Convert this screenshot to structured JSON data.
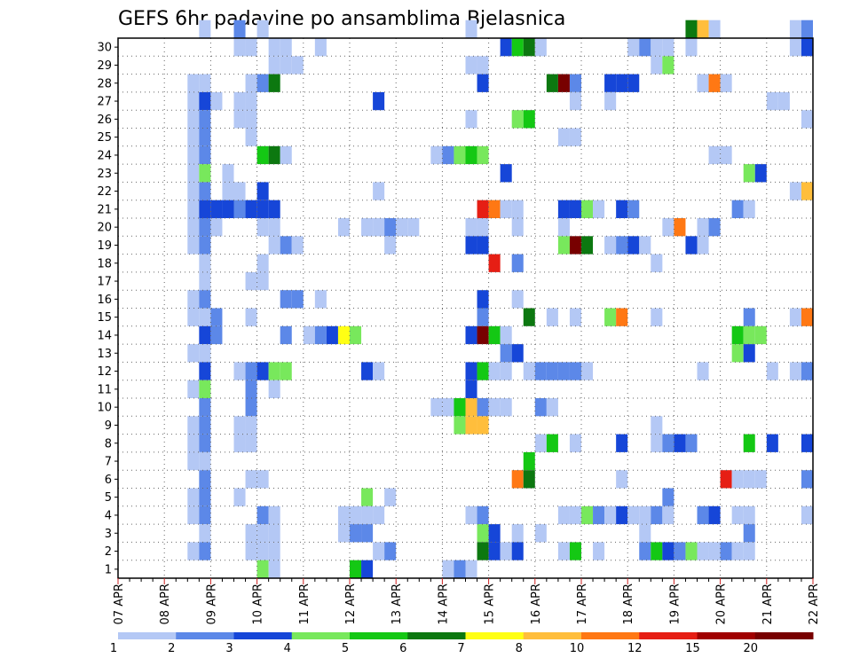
{
  "chart_data": {
    "type": "heatmap",
    "title": "GEFS 6hr padavine po ansamblima Bjelasnica",
    "x_tick_labels": [
      "07 APR",
      "08 APR",
      "09 APR",
      "10 APR",
      "11 APR",
      "12 APR",
      "13 APR",
      "14 APR",
      "15 APR",
      "16 APR",
      "17 APR",
      "18 APR",
      "19 APR",
      "20 APR",
      "21 APR",
      "22 APR"
    ],
    "y_tick_labels": [
      "1",
      "2",
      "3",
      "4",
      "5",
      "6",
      "7",
      "8",
      "9",
      "10",
      "11",
      "12",
      "13",
      "14",
      "15",
      "16",
      "17",
      "18",
      "19",
      "20",
      "21",
      "22",
      "23",
      "24",
      "25",
      "26",
      "27",
      "28",
      "29",
      "30"
    ],
    "xlim": [
      0,
      60
    ],
    "ylim": [
      0,
      30
    ],
    "grid": true,
    "color_levels": [
      1,
      2,
      3,
      4,
      5,
      6,
      7,
      8,
      10,
      12,
      15,
      20
    ],
    "colorbar_labels": [
      "1",
      "2",
      "3",
      "4",
      "5",
      "6",
      "7",
      "8",
      "10",
      "12",
      "15",
      "20"
    ],
    "colors": [
      "#b4c8f5",
      "#5c88e8",
      "#1646d8",
      "#78e85c",
      "#14c814",
      "#0c7810",
      "#ffff14",
      "#ffbe3c",
      "#ff7814",
      "#e61e14",
      "#a00000",
      "#780000"
    ],
    "cells": [
      [
        7,
        30,
        1
      ],
      [
        10,
        30,
        2
      ],
      [
        12,
        30,
        1
      ],
      [
        30,
        30,
        1
      ],
      [
        49,
        30,
        6
      ],
      [
        50,
        30,
        8
      ],
      [
        51,
        30,
        1
      ],
      [
        58,
        30,
        1
      ],
      [
        59,
        30,
        2
      ],
      [
        10,
        29,
        1
      ],
      [
        11,
        29,
        1
      ],
      [
        13,
        29,
        1
      ],
      [
        14,
        29,
        1
      ],
      [
        17,
        29,
        1
      ],
      [
        33,
        29,
        3
      ],
      [
        34,
        29,
        5
      ],
      [
        35,
        29,
        6
      ],
      [
        36,
        29,
        1
      ],
      [
        44,
        29,
        1
      ],
      [
        45,
        29,
        2
      ],
      [
        46,
        29,
        1
      ],
      [
        47,
        29,
        1
      ],
      [
        49,
        29,
        1
      ],
      [
        58,
        29,
        1
      ],
      [
        59,
        29,
        3
      ],
      [
        13,
        28,
        1
      ],
      [
        14,
        28,
        1
      ],
      [
        15,
        28,
        1
      ],
      [
        30,
        28,
        1
      ],
      [
        31,
        28,
        1
      ],
      [
        46,
        28,
        1
      ],
      [
        47,
        28,
        4
      ],
      [
        6,
        27,
        1
      ],
      [
        7,
        27,
        1
      ],
      [
        11,
        27,
        1
      ],
      [
        12,
        27,
        2
      ],
      [
        13,
        27,
        6
      ],
      [
        31,
        27,
        3
      ],
      [
        37,
        27,
        6
      ],
      [
        38,
        27,
        12
      ],
      [
        39,
        27,
        2
      ],
      [
        42,
        27,
        3
      ],
      [
        43,
        27,
        3
      ],
      [
        44,
        27,
        3
      ],
      [
        50,
        27,
        1
      ],
      [
        51,
        27,
        9
      ],
      [
        52,
        27,
        1
      ],
      [
        6,
        26,
        1
      ],
      [
        7,
        26,
        3
      ],
      [
        8,
        26,
        1
      ],
      [
        10,
        26,
        1
      ],
      [
        11,
        26,
        1
      ],
      [
        22,
        26,
        3
      ],
      [
        39,
        26,
        1
      ],
      [
        42,
        26,
        1
      ],
      [
        56,
        26,
        1
      ],
      [
        57,
        26,
        1
      ],
      [
        6,
        25,
        1
      ],
      [
        7,
        25,
        2
      ],
      [
        10,
        25,
        1
      ],
      [
        11,
        25,
        1
      ],
      [
        30,
        25,
        1
      ],
      [
        34,
        25,
        4
      ],
      [
        35,
        25,
        5
      ],
      [
        59,
        25,
        1
      ],
      [
        6,
        24,
        1
      ],
      [
        7,
        24,
        2
      ],
      [
        11,
        24,
        1
      ],
      [
        38,
        24,
        1
      ],
      [
        39,
        24,
        1
      ],
      [
        6,
        23,
        1
      ],
      [
        7,
        23,
        2
      ],
      [
        12,
        23,
        5
      ],
      [
        13,
        23,
        6
      ],
      [
        14,
        23,
        1
      ],
      [
        27,
        23,
        1
      ],
      [
        28,
        23,
        2
      ],
      [
        29,
        23,
        4
      ],
      [
        30,
        23,
        5
      ],
      [
        31,
        23,
        4
      ],
      [
        51,
        23,
        1
      ],
      [
        52,
        23,
        1
      ],
      [
        6,
        22,
        1
      ],
      [
        7,
        22,
        4
      ],
      [
        9,
        22,
        1
      ],
      [
        33,
        22,
        3
      ],
      [
        54,
        22,
        4
      ],
      [
        55,
        22,
        3
      ],
      [
        6,
        21,
        1
      ],
      [
        7,
        21,
        2
      ],
      [
        9,
        21,
        1
      ],
      [
        10,
        21,
        1
      ],
      [
        12,
        21,
        3
      ],
      [
        22,
        21,
        1
      ],
      [
        58,
        21,
        1
      ],
      [
        59,
        21,
        8
      ],
      [
        60,
        21,
        12
      ],
      [
        6,
        20,
        1
      ],
      [
        7,
        20,
        3
      ],
      [
        8,
        20,
        3
      ],
      [
        9,
        20,
        3
      ],
      [
        10,
        20,
        2
      ],
      [
        11,
        20,
        3
      ],
      [
        12,
        20,
        3
      ],
      [
        13,
        20,
        3
      ],
      [
        31,
        20,
        10
      ],
      [
        32,
        20,
        9
      ],
      [
        33,
        20,
        1
      ],
      [
        34,
        20,
        1
      ],
      [
        38,
        20,
        3
      ],
      [
        39,
        20,
        3
      ],
      [
        40,
        20,
        4
      ],
      [
        41,
        20,
        1
      ],
      [
        43,
        20,
        3
      ],
      [
        44,
        20,
        2
      ],
      [
        53,
        20,
        2
      ],
      [
        54,
        20,
        1
      ],
      [
        6,
        19,
        1
      ],
      [
        7,
        19,
        2
      ],
      [
        8,
        19,
        1
      ],
      [
        12,
        19,
        1
      ],
      [
        13,
        19,
        1
      ],
      [
        19,
        19,
        1
      ],
      [
        21,
        19,
        1
      ],
      [
        22,
        19,
        1
      ],
      [
        23,
        19,
        2
      ],
      [
        24,
        19,
        1
      ],
      [
        25,
        19,
        1
      ],
      [
        30,
        19,
        1
      ],
      [
        31,
        19,
        1
      ],
      [
        34,
        19,
        1
      ],
      [
        38,
        19,
        1
      ],
      [
        47,
        19,
        1
      ],
      [
        48,
        19,
        9
      ],
      [
        50,
        19,
        1
      ],
      [
        51,
        19,
        2
      ],
      [
        6,
        18,
        1
      ],
      [
        7,
        18,
        2
      ],
      [
        13,
        18,
        1
      ],
      [
        14,
        18,
        2
      ],
      [
        15,
        18,
        1
      ],
      [
        23,
        18,
        1
      ],
      [
        30,
        18,
        3
      ],
      [
        31,
        18,
        3
      ],
      [
        38,
        18,
        4
      ],
      [
        39,
        18,
        12
      ],
      [
        40,
        18,
        6
      ],
      [
        42,
        18,
        1
      ],
      [
        43,
        18,
        2
      ],
      [
        44,
        18,
        3
      ],
      [
        45,
        18,
        1
      ],
      [
        49,
        18,
        3
      ],
      [
        50,
        18,
        1
      ],
      [
        7,
        17,
        1
      ],
      [
        12,
        17,
        1
      ],
      [
        32,
        17,
        10
      ],
      [
        34,
        17,
        2
      ],
      [
        46,
        17,
        1
      ],
      [
        7,
        16,
        1
      ],
      [
        11,
        16,
        1
      ],
      [
        12,
        16,
        1
      ],
      [
        6,
        15,
        1
      ],
      [
        7,
        15,
        2
      ],
      [
        14,
        15,
        2
      ],
      [
        15,
        15,
        2
      ],
      [
        17,
        15,
        1
      ],
      [
        31,
        15,
        3
      ],
      [
        34,
        15,
        1
      ],
      [
        6,
        14,
        1
      ],
      [
        7,
        14,
        1
      ],
      [
        8,
        14,
        2
      ],
      [
        11,
        14,
        1
      ],
      [
        31,
        14,
        2
      ],
      [
        35,
        14,
        6
      ],
      [
        37,
        14,
        1
      ],
      [
        39,
        14,
        1
      ],
      [
        42,
        14,
        4
      ],
      [
        43,
        14,
        9
      ],
      [
        46,
        14,
        1
      ],
      [
        54,
        14,
        2
      ],
      [
        58,
        14,
        1
      ],
      [
        59,
        14,
        9
      ],
      [
        60,
        14,
        9
      ],
      [
        7,
        13,
        3
      ],
      [
        8,
        13,
        2
      ],
      [
        14,
        13,
        2
      ],
      [
        16,
        13,
        1
      ],
      [
        17,
        13,
        2
      ],
      [
        18,
        13,
        3
      ],
      [
        19,
        13,
        7
      ],
      [
        20,
        13,
        4
      ],
      [
        30,
        13,
        3
      ],
      [
        31,
        13,
        12
      ],
      [
        32,
        13,
        5
      ],
      [
        33,
        13,
        1
      ],
      [
        53,
        13,
        5
      ],
      [
        54,
        13,
        4
      ],
      [
        55,
        13,
        4
      ],
      [
        6,
        12,
        1
      ],
      [
        7,
        12,
        1
      ],
      [
        33,
        12,
        2
      ],
      [
        34,
        12,
        3
      ],
      [
        53,
        12,
        4
      ],
      [
        54,
        12,
        3
      ],
      [
        7,
        11,
        3
      ],
      [
        10,
        11,
        1
      ],
      [
        11,
        11,
        2
      ],
      [
        12,
        11,
        3
      ],
      [
        13,
        11,
        4
      ],
      [
        14,
        11,
        4
      ],
      [
        21,
        11,
        3
      ],
      [
        22,
        11,
        1
      ],
      [
        30,
        11,
        3
      ],
      [
        31,
        11,
        5
      ],
      [
        32,
        11,
        1
      ],
      [
        33,
        11,
        1
      ],
      [
        35,
        11,
        1
      ],
      [
        36,
        11,
        2
      ],
      [
        37,
        11,
        2
      ],
      [
        38,
        11,
        2
      ],
      [
        39,
        11,
        2
      ],
      [
        40,
        11,
        1
      ],
      [
        50,
        11,
        1
      ],
      [
        56,
        11,
        1
      ],
      [
        58,
        11,
        1
      ],
      [
        59,
        11,
        2
      ],
      [
        6,
        10,
        1
      ],
      [
        7,
        10,
        4
      ],
      [
        11,
        10,
        2
      ],
      [
        13,
        10,
        1
      ],
      [
        30,
        10,
        3
      ],
      [
        7,
        9,
        2
      ],
      [
        11,
        9,
        2
      ],
      [
        27,
        9,
        1
      ],
      [
        28,
        9,
        1
      ],
      [
        29,
        9,
        5
      ],
      [
        30,
        9,
        8
      ],
      [
        31,
        9,
        2
      ],
      [
        32,
        9,
        1
      ],
      [
        33,
        9,
        1
      ],
      [
        36,
        9,
        2
      ],
      [
        37,
        9,
        1
      ],
      [
        6,
        8,
        1
      ],
      [
        7,
        8,
        2
      ],
      [
        10,
        8,
        1
      ],
      [
        11,
        8,
        1
      ],
      [
        29,
        8,
        4
      ],
      [
        30,
        8,
        8
      ],
      [
        31,
        8,
        8
      ],
      [
        46,
        8,
        1
      ],
      [
        60,
        8,
        2
      ],
      [
        6,
        7,
        1
      ],
      [
        7,
        7,
        2
      ],
      [
        10,
        7,
        1
      ],
      [
        11,
        7,
        1
      ],
      [
        36,
        7,
        1
      ],
      [
        37,
        7,
        5
      ],
      [
        39,
        7,
        1
      ],
      [
        43,
        7,
        3
      ],
      [
        46,
        7,
        1
      ],
      [
        47,
        7,
        2
      ],
      [
        48,
        7,
        3
      ],
      [
        49,
        7,
        2
      ],
      [
        54,
        7,
        5
      ],
      [
        56,
        7,
        3
      ],
      [
        59,
        7,
        3
      ],
      [
        60,
        7,
        10
      ],
      [
        6,
        6,
        1
      ],
      [
        7,
        6,
        1
      ],
      [
        35,
        6,
        5
      ],
      [
        7,
        5,
        2
      ],
      [
        11,
        5,
        1
      ],
      [
        12,
        5,
        1
      ],
      [
        34,
        5,
        9
      ],
      [
        35,
        5,
        6
      ],
      [
        43,
        5,
        1
      ],
      [
        52,
        5,
        10
      ],
      [
        53,
        5,
        1
      ],
      [
        54,
        5,
        1
      ],
      [
        55,
        5,
        1
      ],
      [
        59,
        5,
        2
      ],
      [
        6,
        4,
        1
      ],
      [
        7,
        4,
        2
      ],
      [
        10,
        4,
        1
      ],
      [
        21,
        4,
        4
      ],
      [
        23,
        4,
        1
      ],
      [
        47,
        4,
        2
      ],
      [
        6,
        3,
        1
      ],
      [
        7,
        3,
        2
      ],
      [
        12,
        3,
        2
      ],
      [
        13,
        3,
        1
      ],
      [
        19,
        3,
        1
      ],
      [
        20,
        3,
        1
      ],
      [
        21,
        3,
        1
      ],
      [
        22,
        3,
        1
      ],
      [
        30,
        3,
        1
      ],
      [
        31,
        3,
        2
      ],
      [
        38,
        3,
        1
      ],
      [
        39,
        3,
        1
      ],
      [
        40,
        3,
        4
      ],
      [
        41,
        3,
        2
      ],
      [
        42,
        3,
        1
      ],
      [
        43,
        3,
        3
      ],
      [
        44,
        3,
        1
      ],
      [
        45,
        3,
        1
      ],
      [
        46,
        3,
        2
      ],
      [
        47,
        3,
        1
      ],
      [
        50,
        3,
        2
      ],
      [
        51,
        3,
        3
      ],
      [
        53,
        3,
        1
      ],
      [
        54,
        3,
        1
      ],
      [
        59,
        3,
        1
      ],
      [
        7,
        2,
        1
      ],
      [
        11,
        2,
        1
      ],
      [
        12,
        2,
        1
      ],
      [
        13,
        2,
        1
      ],
      [
        19,
        2,
        1
      ],
      [
        20,
        2,
        2
      ],
      [
        21,
        2,
        2
      ],
      [
        31,
        2,
        4
      ],
      [
        32,
        2,
        3
      ],
      [
        34,
        2,
        1
      ],
      [
        36,
        2,
        1
      ],
      [
        45,
        2,
        1
      ],
      [
        54,
        2,
        2
      ],
      [
        6,
        1,
        1
      ],
      [
        7,
        1,
        2
      ],
      [
        11,
        1,
        1
      ],
      [
        12,
        1,
        1
      ],
      [
        13,
        1,
        1
      ],
      [
        22,
        1,
        1
      ],
      [
        23,
        1,
        2
      ],
      [
        31,
        1,
        6
      ],
      [
        32,
        1,
        3
      ],
      [
        33,
        1,
        1
      ],
      [
        34,
        1,
        3
      ],
      [
        38,
        1,
        1
      ],
      [
        39,
        1,
        5
      ],
      [
        41,
        1,
        1
      ],
      [
        45,
        1,
        2
      ],
      [
        46,
        1,
        5
      ],
      [
        47,
        1,
        3
      ],
      [
        48,
        1,
        2
      ],
      [
        49,
        1,
        4
      ],
      [
        50,
        1,
        1
      ],
      [
        51,
        1,
        1
      ],
      [
        52,
        1,
        2
      ],
      [
        53,
        1,
        1
      ],
      [
        54,
        1,
        1
      ],
      [
        12,
        0,
        4
      ],
      [
        13,
        0,
        1
      ],
      [
        20,
        0,
        5
      ],
      [
        21,
        0,
        3
      ],
      [
        28,
        0,
        1
      ],
      [
        29,
        0,
        2
      ],
      [
        30,
        0,
        1
      ]
    ]
  }
}
